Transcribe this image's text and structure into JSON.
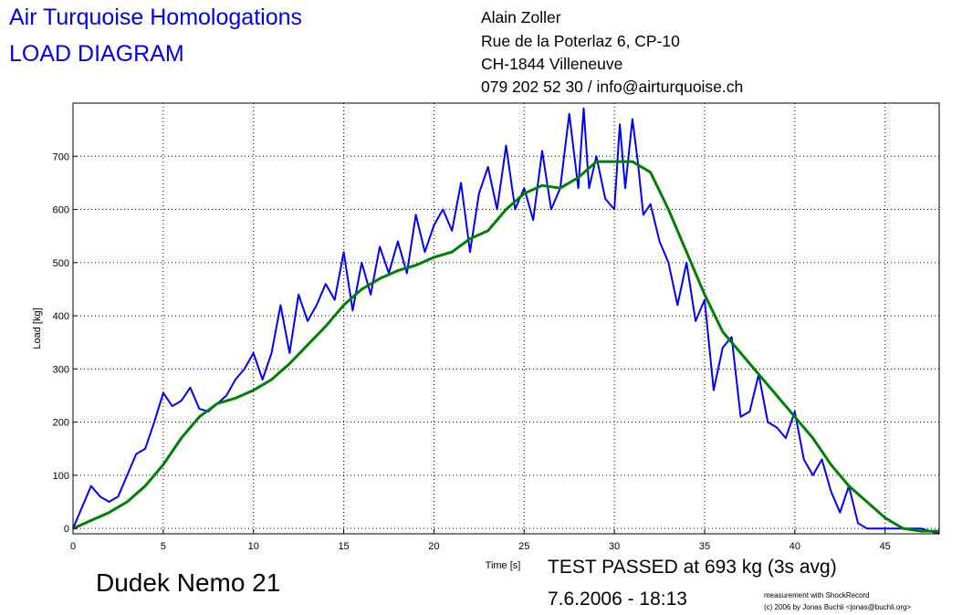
{
  "header": {
    "title_line1": "Air Turquoise Homologations",
    "title_line2": "LOAD DIAGRAM",
    "address": [
      "Alain Zoller",
      "Rue de la Poterlaz 6, CP-10",
      "CH-1844 Villeneuve",
      "079 202 52 30 / info@airturquoise.ch"
    ]
  },
  "footer": {
    "glider": "Dudek Nemo 21",
    "result": "TEST PASSED at 693 kg (3s avg)",
    "datetime": "7.6.2006 - 18:13",
    "credit1": "measurement with ShockRecord",
    "credit2": "(c) 2006 by Jonas Buchli <jonas@buchli.org>"
  },
  "colors": {
    "title": "#0000ee",
    "raw": "#0000ff",
    "avg": "#008000",
    "grid": "#000000"
  },
  "chart_data": {
    "type": "line",
    "title": "",
    "xlabel": "Time [s]",
    "ylabel": "Load [kg]",
    "xlim": [
      0,
      48
    ],
    "ylim": [
      -10,
      800
    ],
    "xticks": [
      0,
      5,
      10,
      15,
      20,
      25,
      30,
      35,
      40,
      45
    ],
    "yticks": [
      0,
      100,
      200,
      300,
      400,
      500,
      600,
      700
    ],
    "grid": true,
    "series": [
      {
        "color": "#0000ff",
        "x": [
          0,
          0.5,
          1,
          1.5,
          2,
          2.5,
          3,
          3.5,
          4,
          4.5,
          5,
          5.5,
          6,
          6.5,
          7,
          7.5,
          8,
          8.5,
          9,
          9.5,
          10,
          10.5,
          11,
          11.5,
          12,
          12.5,
          13,
          13.5,
          14,
          14.5,
          15,
          15.5,
          16,
          16.5,
          17,
          17.5,
          18,
          18.5,
          19,
          19.5,
          20,
          20.5,
          21,
          21.5,
          22,
          22.5,
          23,
          23.5,
          24,
          24.5,
          25,
          25.5,
          26,
          26.5,
          27,
          27.5,
          28,
          28.3,
          28.6,
          29,
          29.5,
          30,
          30.3,
          30.6,
          31,
          31.3,
          31.6,
          32,
          32.5,
          33,
          33.5,
          34,
          34.5,
          35,
          35.5,
          36,
          36.5,
          37,
          37.5,
          38,
          38.5,
          39,
          39.5,
          40,
          40.5,
          41,
          41.5,
          42,
          42.5,
          43,
          43.5,
          44,
          44.5,
          45,
          46,
          47,
          48
        ],
        "y": [
          0,
          40,
          80,
          60,
          50,
          60,
          100,
          140,
          150,
          200,
          255,
          230,
          240,
          265,
          225,
          220,
          235,
          250,
          280,
          300,
          330,
          280,
          330,
          420,
          330,
          440,
          390,
          420,
          460,
          430,
          520,
          410,
          500,
          440,
          530,
          480,
          540,
          480,
          590,
          520,
          570,
          600,
          560,
          650,
          520,
          630,
          680,
          600,
          720,
          600,
          640,
          580,
          710,
          600,
          640,
          780,
          640,
          790,
          640,
          700,
          620,
          600,
          760,
          640,
          770,
          690,
          590,
          610,
          540,
          500,
          420,
          500,
          390,
          430,
          260,
          340,
          360,
          210,
          220,
          290,
          200,
          190,
          170,
          220,
          130,
          100,
          130,
          70,
          30,
          80,
          10,
          0,
          0,
          0,
          0,
          0,
          -10
        ]
      },
      {
        "color": "#008000",
        "x": [
          0,
          1,
          2,
          3,
          4,
          5,
          6,
          7,
          8,
          9,
          10,
          11,
          12,
          13,
          14,
          15,
          16,
          17,
          18,
          19,
          20,
          21,
          22,
          23,
          24,
          25,
          26,
          27,
          28,
          29,
          30,
          31,
          32,
          33,
          34,
          35,
          36,
          37,
          38,
          39,
          40,
          41,
          42,
          43,
          44,
          45,
          46,
          47,
          48
        ],
        "y": [
          0,
          15,
          30,
          50,
          80,
          120,
          170,
          210,
          235,
          245,
          260,
          280,
          310,
          345,
          380,
          420,
          450,
          470,
          485,
          495,
          510,
          520,
          545,
          560,
          600,
          630,
          645,
          640,
          660,
          690,
          690,
          690,
          670,
          600,
          520,
          440,
          370,
          330,
          290,
          250,
          210,
          170,
          120,
          80,
          50,
          20,
          0,
          -5,
          -5
        ]
      }
    ]
  }
}
